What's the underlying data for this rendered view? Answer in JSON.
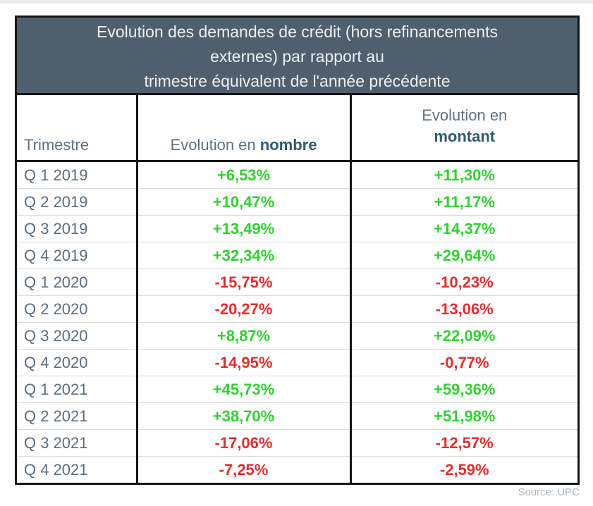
{
  "chart_data": {
    "type": "table",
    "title": "Evolution des demandes de crédit (hors refinancements externes) par rapport au trimestre équivalent de l'année précédente",
    "columns": [
      "Trimestre",
      "Evolution en nombre",
      "Evolution en montant"
    ],
    "rows": [
      [
        "Q 1 2019",
        "+6,53%",
        "+11,30%"
      ],
      [
        "Q 2 2019",
        "+10,47%",
        "+11,17%"
      ],
      [
        "Q 3 2019",
        "+13,49%",
        "+14,37%"
      ],
      [
        "Q 4 2019",
        "+32,34%",
        "+29,64%"
      ],
      [
        "Q 1 2020",
        "-15,75%",
        "-10,23%"
      ],
      [
        "Q 2 2020",
        "-20,27%",
        "-13,06%"
      ],
      [
        "Q 3 2020",
        "+8,87%",
        "+22,09%"
      ],
      [
        "Q 4 2020",
        "-14,95%",
        "-0,77%"
      ],
      [
        "Q 1 2021",
        "+45,73%",
        "+59,36%"
      ],
      [
        "Q 2 2021",
        "+38,70%",
        "+51,98%"
      ],
      [
        "Q 3 2021",
        "-17,06%",
        "-12,57%"
      ],
      [
        "Q 4 2021",
        "-7,25%",
        "-2,59%"
      ]
    ],
    "source": "Source: UPC"
  },
  "ui": {
    "title_lines": [
      "Evolution des demandes de crédit (hors refinancements",
      "externes) par rapport au",
      "trimestre équivalent de l'année précédente"
    ],
    "header": {
      "col1": "Trimestre",
      "col2_regular": "Evolution en ",
      "col2_bold": "nombre",
      "col3_regular": "Evolution en",
      "col3_bold": "montant"
    },
    "source_note": "Source: UPC",
    "colors": {
      "title_bg": "#4f5f6d",
      "title_text": "#eef1f4",
      "header_text": "#5f7381",
      "header_bold_text": "#2f5a70",
      "row_label_text": "#5c6d7b",
      "positive_value": "#2ed32e",
      "negative_value": "#ea2b2b",
      "border_black": "#161616",
      "row_separator": "#dadada",
      "source_text": "#adb7c2"
    }
  }
}
